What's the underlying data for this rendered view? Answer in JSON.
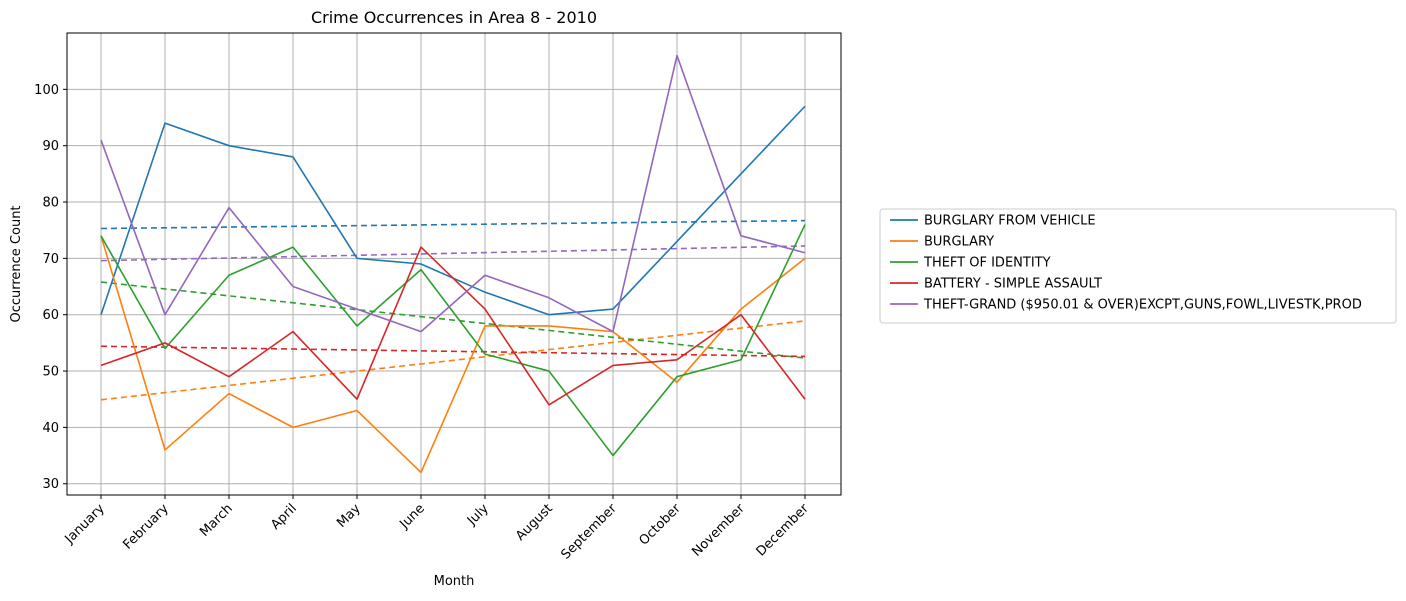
{
  "chart_data": {
    "type": "line",
    "title": "Crime Occurrences in Area 8 - 2010",
    "xlabel": "Month",
    "ylabel": "Occurrence Count",
    "categories": [
      "January",
      "February",
      "March",
      "April",
      "May",
      "June",
      "July",
      "August",
      "September",
      "October",
      "November",
      "December"
    ],
    "ylim": [
      28,
      110
    ],
    "yticks": [
      30,
      40,
      50,
      60,
      70,
      80,
      90,
      100
    ],
    "grid": true,
    "legend_position": "right",
    "series": [
      {
        "name": "BURGLARY FROM VEHICLE",
        "color": "#1f77b4",
        "values": [
          60,
          94,
          90,
          88,
          70,
          69,
          64,
          60,
          61,
          73,
          85,
          97
        ],
        "trend": [
          75.3,
          76.7
        ]
      },
      {
        "name": "BURGLARY",
        "color": "#ff7f0e",
        "values": [
          74,
          36,
          46,
          40,
          43,
          32,
          58,
          58,
          57,
          48,
          61,
          70
        ],
        "trend": [
          44.9,
          58.9
        ]
      },
      {
        "name": "THEFT OF IDENTITY",
        "color": "#2ca02c",
        "values": [
          74,
          54,
          67,
          72,
          58,
          68,
          53,
          50,
          35,
          49,
          52,
          76
        ],
        "trend": [
          65.8,
          52.3
        ]
      },
      {
        "name": "BATTERY - SIMPLE ASSAULT",
        "color": "#d62728",
        "values": [
          51,
          55,
          49,
          57,
          45,
          72,
          61,
          44,
          51,
          52,
          60,
          45
        ],
        "trend": [
          54.4,
          52.6
        ]
      },
      {
        "name": "THEFT-GRAND ($950.01 & OVER)EXCPT,GUNS,FOWL,LIVESTK,PROD",
        "color": "#9467bd",
        "values": [
          91,
          60,
          79,
          65,
          61,
          57,
          67,
          63,
          57,
          106,
          74,
          71
        ],
        "trend": [
          69.6,
          72.2
        ]
      }
    ]
  }
}
